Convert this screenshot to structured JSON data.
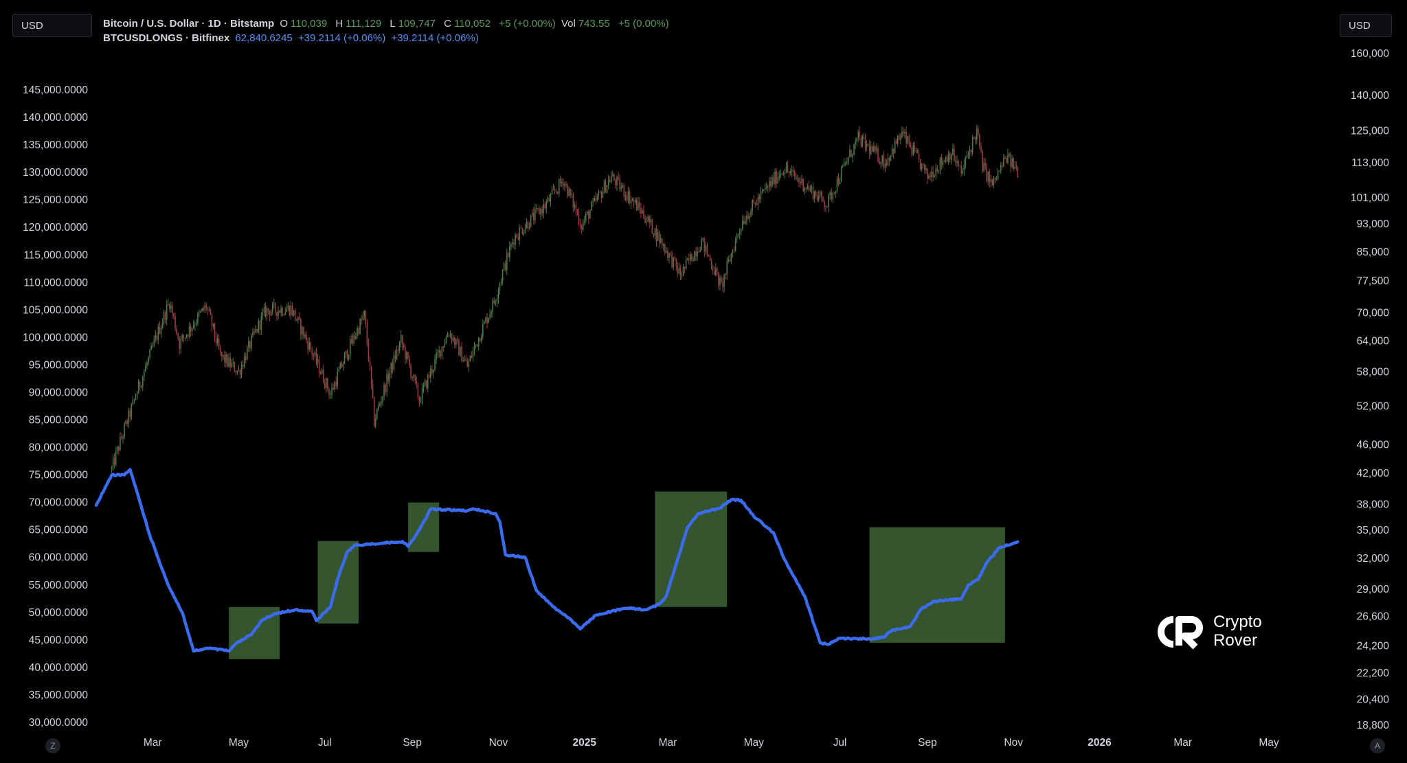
{
  "left_currency": "USD",
  "right_currency": "USD",
  "legend": {
    "main": {
      "symbol": "Bitcoin / U.S. Dollar · 1D · Bitstamp",
      "o_key": "O",
      "open": "110,039",
      "h_key": "H",
      "high": "111,129",
      "l_key": "L",
      "low": "109,747",
      "c_key": "C",
      "close": "110,052",
      "change": "+5 (+0.00%)",
      "vol_key": "Vol",
      "volume": "743.55",
      "vol_change": "+5 (0.00%)"
    },
    "longs": {
      "symbol": "BTCUSDLONGS · Bitfinex",
      "value": "62,840.6245",
      "change": "+39.2114 (+0.06%)",
      "change2": "+39.2114 (+0.06%)"
    }
  },
  "timezone_btn": "Z",
  "auto_scale_btn": "A",
  "logo": {
    "line1": "Crypto",
    "line2": "Rover"
  },
  "colors": {
    "background": "#000000",
    "candle_up": "#4e7a49",
    "candle_down": "#9b3d45",
    "longs_line": "#3b6cf0",
    "highlight_box": "#3a5c33"
  },
  "chart_data": {
    "type": "candlestick+line",
    "x_axis_labels": [
      "Mar",
      "May",
      "Jul",
      "Sep",
      "Nov",
      "2025",
      "Mar",
      "May",
      "Jul",
      "Sep",
      "Nov",
      "2026",
      "Mar",
      "May"
    ],
    "x_axis_bold": [
      "2025",
      "2026"
    ],
    "x_range": [
      "2024-01-21",
      "2026-06-25"
    ],
    "left_axis": {
      "series": "BTCUSDLONGS · Bitfinex",
      "scale": "linear",
      "ticks": [
        "145,000.0000",
        "140,000.0000",
        "135,000.0000",
        "130,000.0000",
        "125,000.0000",
        "120,000.0000",
        "115,000.0000",
        "110,000.0000",
        "105,000.0000",
        "100,000.0000",
        "95,000.0000",
        "90,000.0000",
        "85,000.0000",
        "80,000.0000",
        "75,000.0000",
        "70,000.0000",
        "65,000.0000",
        "60,000.0000",
        "55,000.0000",
        "50,000.0000",
        "45,000.0000",
        "40,000.0000",
        "35,000.0000",
        "30,000.0000"
      ],
      "range": [
        30000,
        145000
      ]
    },
    "right_axis": {
      "series": "Bitcoin / U.S. Dollar",
      "scale": "log",
      "ticks": [
        "160,000",
        "140,000",
        "125,000",
        "113,000",
        "101,000",
        "93,000",
        "85,000",
        "77,500",
        "70,000",
        "64,000",
        "58,000",
        "52,000",
        "46,000",
        "42,000",
        "38,000",
        "35,000",
        "32,000",
        "29,000",
        "26,600",
        "24,200",
        "22,200",
        "20,400",
        "18,800"
      ]
    },
    "price_series": {
      "name": "Bitcoin / U.S. Dollar",
      "type": "candlestick",
      "anchors": [
        [
          "2024-02-01",
          42500
        ],
        [
          "2024-02-15",
          51500
        ],
        [
          "2024-02-28",
          61000
        ],
        [
          "2024-03-13",
          72500
        ],
        [
          "2024-03-20",
          63500
        ],
        [
          "2024-04-08",
          71500
        ],
        [
          "2024-04-18",
          61000
        ],
        [
          "2024-05-01",
          58000
        ],
        [
          "2024-05-20",
          70500
        ],
        [
          "2024-06-07",
          71000
        ],
        [
          "2024-06-24",
          60500
        ],
        [
          "2024-07-05",
          54000
        ],
        [
          "2024-07-29",
          69500
        ],
        [
          "2024-08-05",
          49500
        ],
        [
          "2024-08-24",
          64000
        ],
        [
          "2024-09-06",
          53000
        ],
        [
          "2024-09-27",
          66000
        ],
        [
          "2024-10-10",
          59000
        ],
        [
          "2024-10-29",
          72500
        ],
        [
          "2024-11-12",
          89000
        ],
        [
          "2024-12-05",
          99000
        ],
        [
          "2024-12-17",
          107000
        ],
        [
          "2024-12-30",
          92500
        ],
        [
          "2025-01-20",
          108000
        ],
        [
          "2025-02-10",
          97000
        ],
        [
          "2025-03-10",
          79000
        ],
        [
          "2025-03-25",
          88000
        ],
        [
          "2025-04-08",
          76000
        ],
        [
          "2025-04-23",
          94000
        ],
        [
          "2025-05-22",
          111000
        ],
        [
          "2025-06-22",
          99000
        ],
        [
          "2025-07-14",
          122000
        ],
        [
          "2025-08-02",
          113000
        ],
        [
          "2025-08-14",
          124000
        ],
        [
          "2025-09-01",
          108000
        ],
        [
          "2025-09-18",
          117000
        ],
        [
          "2025-09-25",
          109000
        ],
        [
          "2025-10-06",
          125000
        ],
        [
          "2025-10-10",
          112000
        ],
        [
          "2025-10-17",
          105000
        ],
        [
          "2025-10-27",
          115000
        ],
        [
          "2025-11-04",
          110052
        ]
      ]
    },
    "longs_series": {
      "name": "BTCUSDLONGS · Bitfinex",
      "type": "line",
      "points": [
        [
          "2024-01-21",
          69500
        ],
        [
          "2024-01-27",
          72500
        ],
        [
          "2024-02-01",
          75000
        ],
        [
          "2024-02-10",
          75000
        ],
        [
          "2024-02-14",
          76000
        ],
        [
          "2024-02-20",
          71000
        ],
        [
          "2024-02-28",
          64000
        ],
        [
          "2024-03-12",
          55000
        ],
        [
          "2024-03-22",
          50000
        ],
        [
          "2024-03-30",
          43000
        ],
        [
          "2024-04-10",
          43500
        ],
        [
          "2024-04-24",
          43000
        ],
        [
          "2024-04-30",
          44500
        ],
        [
          "2024-05-10",
          46000
        ],
        [
          "2024-05-17",
          48500
        ],
        [
          "2024-05-27",
          49800
        ],
        [
          "2024-06-10",
          50500
        ],
        [
          "2024-06-22",
          50200
        ],
        [
          "2024-06-25",
          48500
        ],
        [
          "2024-07-05",
          51000
        ],
        [
          "2024-07-10",
          56000
        ],
        [
          "2024-07-17",
          61000
        ],
        [
          "2024-07-22",
          62200
        ],
        [
          "2024-08-10",
          62600
        ],
        [
          "2024-08-25",
          62900
        ],
        [
          "2024-08-29",
          62000
        ],
        [
          "2024-09-06",
          65000
        ],
        [
          "2024-09-14",
          68800
        ],
        [
          "2024-10-10",
          68500
        ],
        [
          "2024-10-15",
          68800
        ],
        [
          "2024-10-30",
          68000
        ],
        [
          "2024-11-02",
          66500
        ],
        [
          "2024-11-06",
          60500
        ],
        [
          "2024-11-20",
          60000
        ],
        [
          "2024-11-28",
          54000
        ],
        [
          "2024-12-10",
          51000
        ],
        [
          "2024-12-21",
          49000
        ],
        [
          "2024-12-29",
          47000
        ],
        [
          "2025-01-09",
          49500
        ],
        [
          "2025-01-20",
          50200
        ],
        [
          "2025-02-01",
          50800
        ],
        [
          "2025-02-14",
          50500
        ],
        [
          "2025-02-23",
          51500
        ],
        [
          "2025-02-28",
          53000
        ],
        [
          "2025-03-06",
          58000
        ],
        [
          "2025-03-15",
          65500
        ],
        [
          "2025-03-23",
          68000
        ],
        [
          "2025-04-07",
          69000
        ],
        [
          "2025-04-15",
          70500
        ],
        [
          "2025-04-22",
          70400
        ],
        [
          "2025-05-01",
          67500
        ],
        [
          "2025-05-15",
          64500
        ],
        [
          "2025-05-22",
          60000
        ],
        [
          "2025-06-06",
          53000
        ],
        [
          "2025-06-17",
          44500
        ],
        [
          "2025-06-23",
          44200
        ],
        [
          "2025-06-30",
          45300
        ],
        [
          "2025-07-22",
          45200
        ],
        [
          "2025-08-01",
          45500
        ],
        [
          "2025-08-07",
          46800
        ],
        [
          "2025-08-20",
          47500
        ],
        [
          "2025-08-27",
          50500
        ],
        [
          "2025-09-05",
          52000
        ],
        [
          "2025-09-25",
          52500
        ],
        [
          "2025-09-30",
          55000
        ],
        [
          "2025-10-07",
          56000
        ],
        [
          "2025-10-13",
          59000
        ],
        [
          "2025-10-22",
          61800
        ],
        [
          "2025-11-04",
          62840.6245
        ]
      ]
    },
    "highlight_boxes": [
      {
        "x": [
          "2024-04-24",
          "2024-05-30"
        ],
        "y": [
          41500,
          51000
        ]
      },
      {
        "x": [
          "2024-06-26",
          "2024-07-25"
        ],
        "y": [
          48000,
          63000
        ]
      },
      {
        "x": [
          "2024-08-29",
          "2024-09-20"
        ],
        "y": [
          61000,
          70000
        ]
      },
      {
        "x": [
          "2025-02-20",
          "2025-04-12"
        ],
        "y": [
          51000,
          72000
        ]
      },
      {
        "x": [
          "2025-07-22",
          "2025-10-26"
        ],
        "y": [
          44500,
          65500
        ]
      }
    ]
  }
}
